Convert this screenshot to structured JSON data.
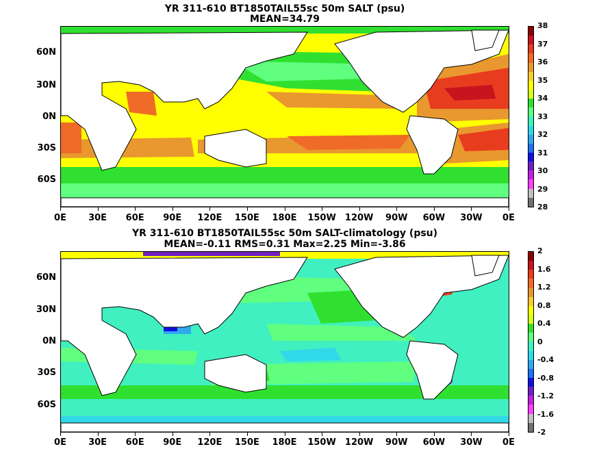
{
  "panels": [
    {
      "id": "top",
      "title_line1": "YR 311-610 BT1850TAIL55sc 50m SALT (psu)",
      "title_line2": "MEAN=34.79",
      "lat_labels": [
        "60N",
        "30N",
        "0N",
        "30S",
        "60S"
      ],
      "lon_labels": [
        "0E",
        "30E",
        "60E",
        "90E",
        "120E",
        "150E",
        "180E",
        "150W",
        "120W",
        "90W",
        "60W",
        "30W",
        "0E"
      ],
      "colorbar": {
        "ticks": [
          "38",
          "37",
          "36",
          "35",
          "34",
          "33",
          "32",
          "31",
          "30",
          "29",
          "28"
        ],
        "colors": [
          "#8b0000",
          "#c8141e",
          "#e83c1e",
          "#f06a28",
          "#e8982e",
          "#f8cc30",
          "#ffff00",
          "#d8ff20",
          "#30e030",
          "#60ff80",
          "#40f0c0",
          "#30d8e8",
          "#30a8f0",
          "#2070f0",
          "#1010e0",
          "#7020c0",
          "#c020e0",
          "#ff40ff",
          "#c0c0c0",
          "#707070"
        ]
      }
    },
    {
      "id": "bottom",
      "title_line1": "YR 311-610 BT1850TAIL55sc 50m SALT-climatology (psu)",
      "title_line2": "MEAN=-0.11   RMS=0.31   Max=2.25   Min=-3.86",
      "lat_labels": [
        "60N",
        "30N",
        "0N",
        "30S",
        "60S"
      ],
      "lon_labels": [
        "0E",
        "30E",
        "60E",
        "90E",
        "120E",
        "150E",
        "180E",
        "150W",
        "120W",
        "90W",
        "60W",
        "30W",
        "0E"
      ],
      "colorbar": {
        "ticks": [
          "2",
          "1.6",
          "1.2",
          "0.8",
          "0.4",
          "0",
          "-0.4",
          "-0.8",
          "-1.2",
          "-1.6",
          "-2"
        ],
        "colors": [
          "#8b0000",
          "#c8141e",
          "#e83c1e",
          "#f06a28",
          "#e8982e",
          "#f8cc30",
          "#ffff00",
          "#d8ff20",
          "#30e030",
          "#60ff80",
          "#40f0c0",
          "#30d8e8",
          "#30a8f0",
          "#2070f0",
          "#1010e0",
          "#7020c0",
          "#c020e0",
          "#ff40ff",
          "#c0c0c0",
          "#707070"
        ]
      }
    }
  ]
}
